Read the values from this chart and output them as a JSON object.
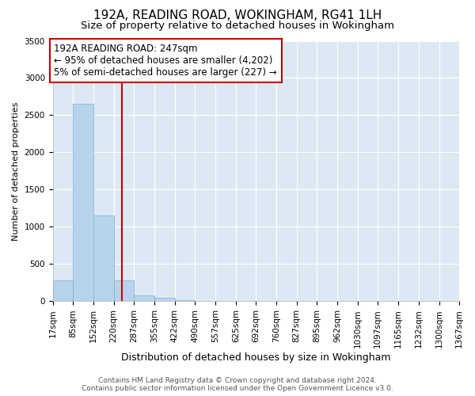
{
  "title": "192A, READING ROAD, WOKINGHAM, RG41 1LH",
  "subtitle": "Size of property relative to detached houses in Wokingham",
  "xlabel": "Distribution of detached houses by size in Wokingham",
  "ylabel": "Number of detached properties",
  "background_color": "#dce9f5",
  "bar_color": "#b8d4ec",
  "bar_edge_color": "#7aafd4",
  "grid_color": "#ffffff",
  "bin_edges": [
    17,
    85,
    152,
    220,
    287,
    355,
    422,
    490,
    557,
    625,
    692,
    760,
    827,
    895,
    962,
    1030,
    1097,
    1165,
    1232,
    1300,
    1367
  ],
  "bar_heights": [
    280,
    2650,
    1150,
    280,
    80,
    45,
    20,
    0,
    0,
    0,
    0,
    0,
    0,
    0,
    0,
    0,
    0,
    0,
    0,
    0
  ],
  "property_size": 247,
  "ylim": [
    0,
    3500
  ],
  "annotation_text": "192A READING ROAD: 247sqm\n← 95% of detached houses are smaller (4,202)\n5% of semi-detached houses are larger (227) →",
  "annotation_box_color": "#ffffff",
  "annotation_box_edge_color": "#cc0000",
  "vline_color": "#cc0000",
  "footer_text": "Contains HM Land Registry data © Crown copyright and database right 2024.\nContains public sector information licensed under the Open Government Licence v3.0.",
  "title_fontsize": 11,
  "subtitle_fontsize": 9.5,
  "xlabel_fontsize": 9,
  "ylabel_fontsize": 8,
  "tick_fontsize": 7.5,
  "annotation_fontsize": 8.5,
  "footer_fontsize": 6.5
}
